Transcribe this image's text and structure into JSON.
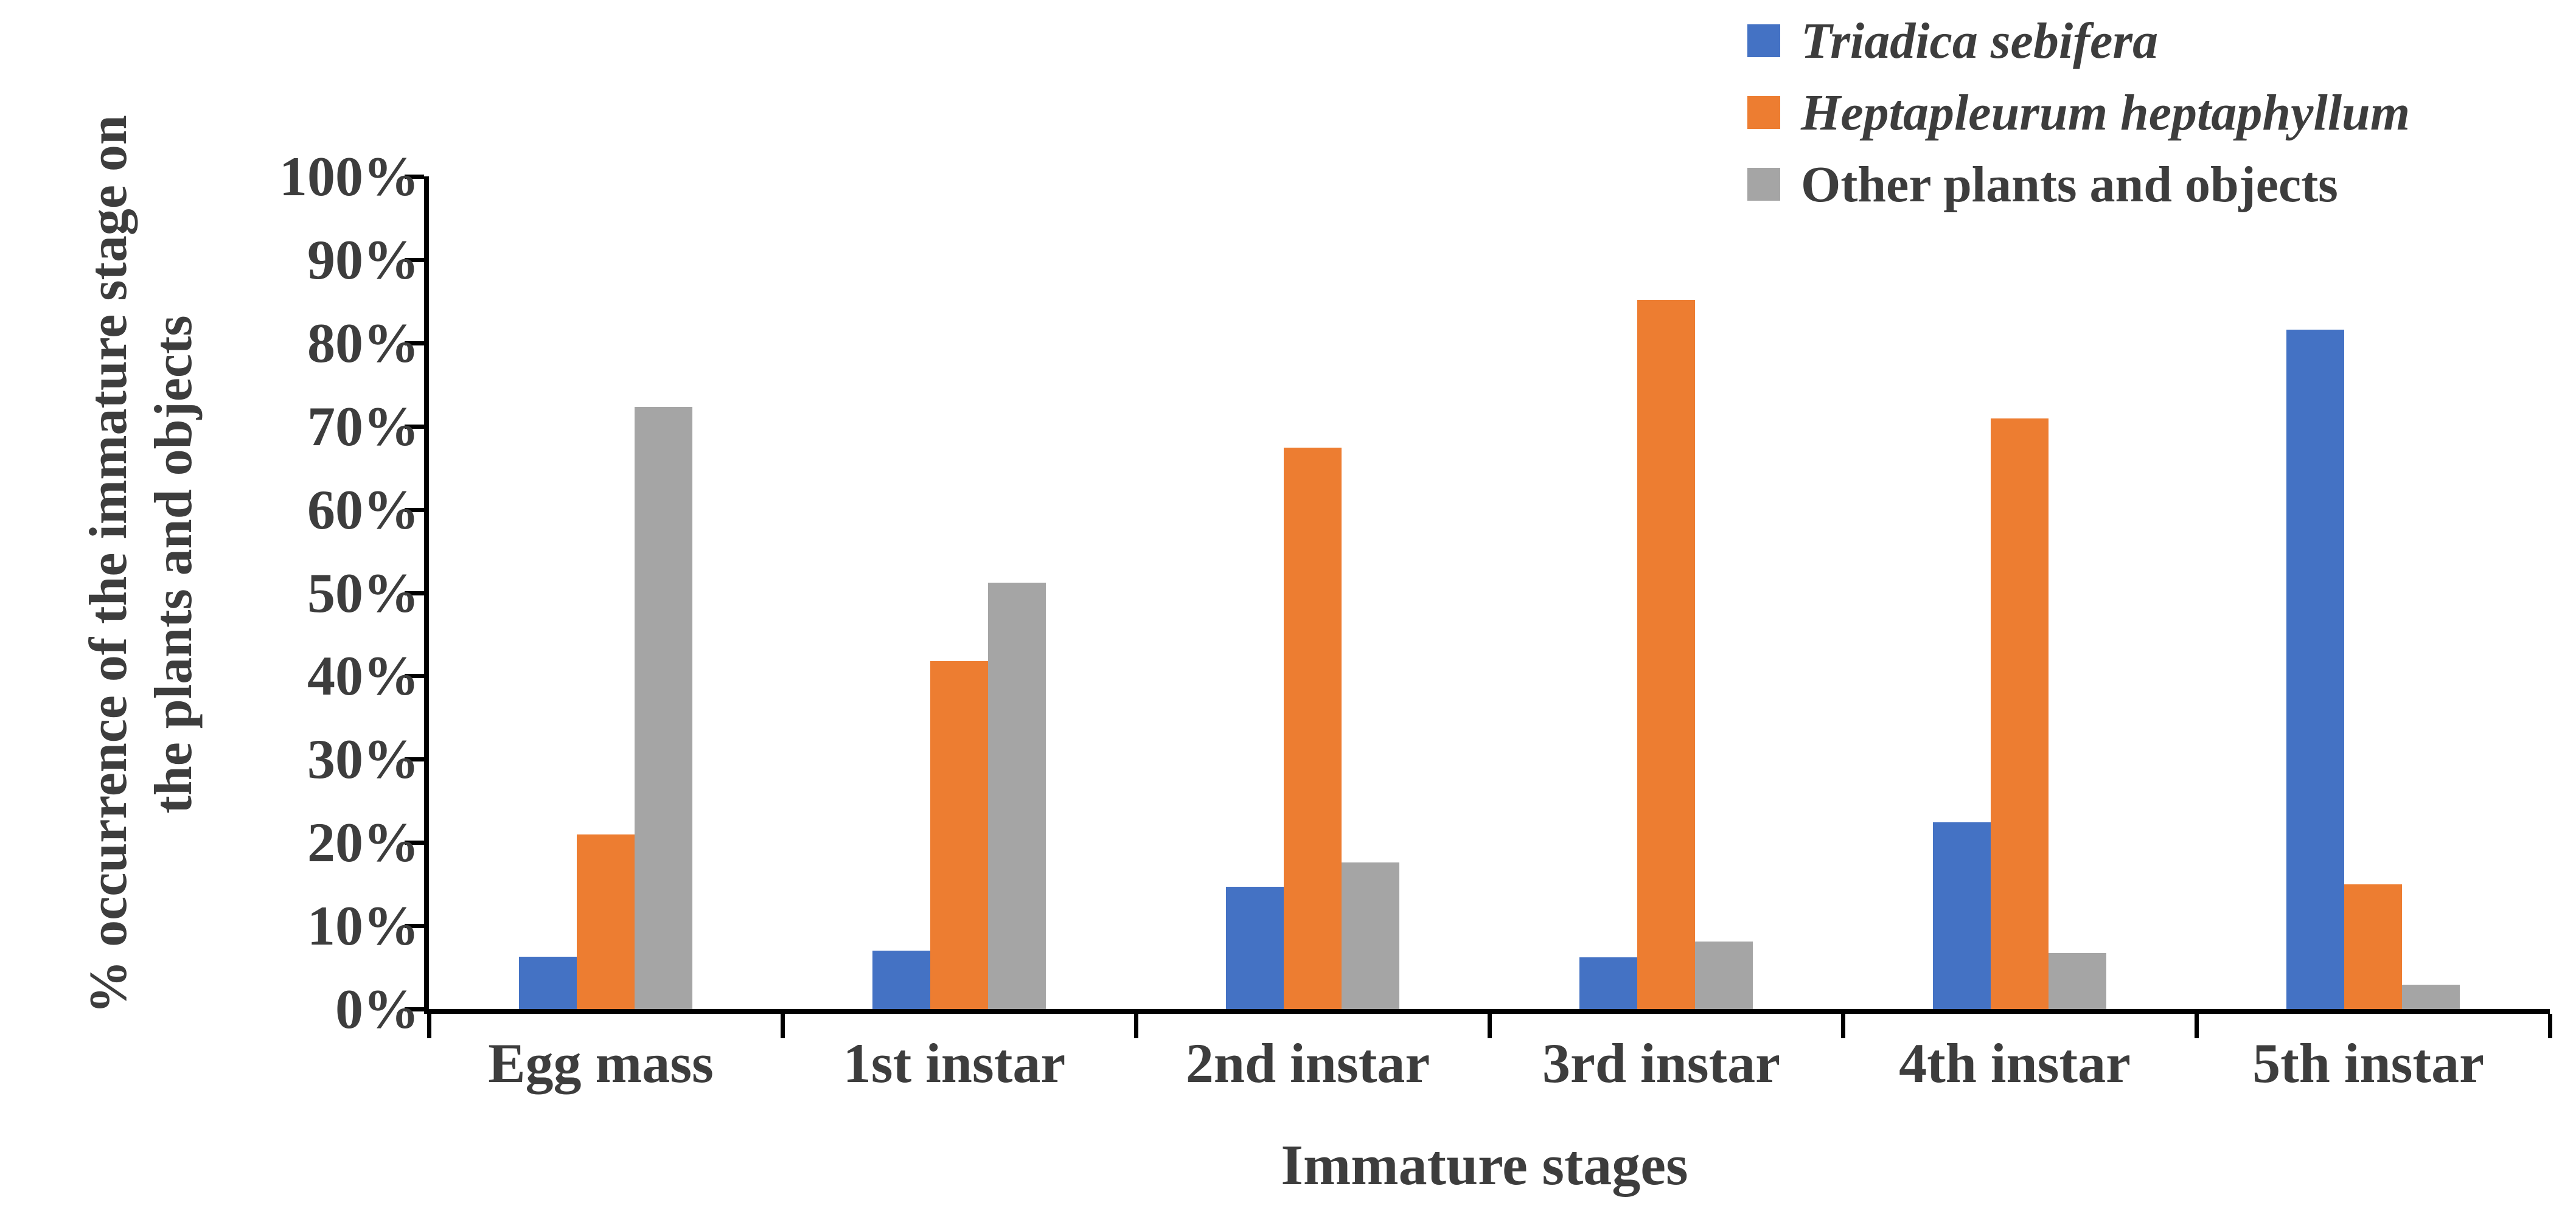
{
  "chart_data": {
    "type": "bar",
    "title": "",
    "xlabel": "Immature stages",
    "ylabel_lines": [
      "% occurrence of the immature stage on",
      "the plants and objects"
    ],
    "categories": [
      "Egg mass",
      "1st instar",
      "2nd instar",
      "3rd instar",
      "4th instar",
      "5th instar"
    ],
    "series": [
      {
        "name": "Triadica sebifera",
        "italic": true,
        "color": "#4472C4",
        "values": [
          6.3,
          7.0,
          14.7,
          6.2,
          22.4,
          81.6
        ]
      },
      {
        "name": "Heptapleurum heptaphyllum",
        "italic": true,
        "color": "#ED7D31",
        "values": [
          21.0,
          41.8,
          67.4,
          85.2,
          70.9,
          15.0
        ]
      },
      {
        "name": "Other plants and objects",
        "italic": false,
        "color": "#A5A5A5",
        "values": [
          72.3,
          51.2,
          17.6,
          8.1,
          6.7,
          2.9
        ]
      }
    ],
    "y_ticks": [
      "0%",
      "10%",
      "20%",
      "30%",
      "40%",
      "50%",
      "60%",
      "70%",
      "80%",
      "90%",
      "100%"
    ],
    "ylim": [
      0,
      100
    ],
    "grid": false,
    "legend_position": "top-right",
    "axis_color": "#000000",
    "text_color": "#3d3d3d"
  }
}
